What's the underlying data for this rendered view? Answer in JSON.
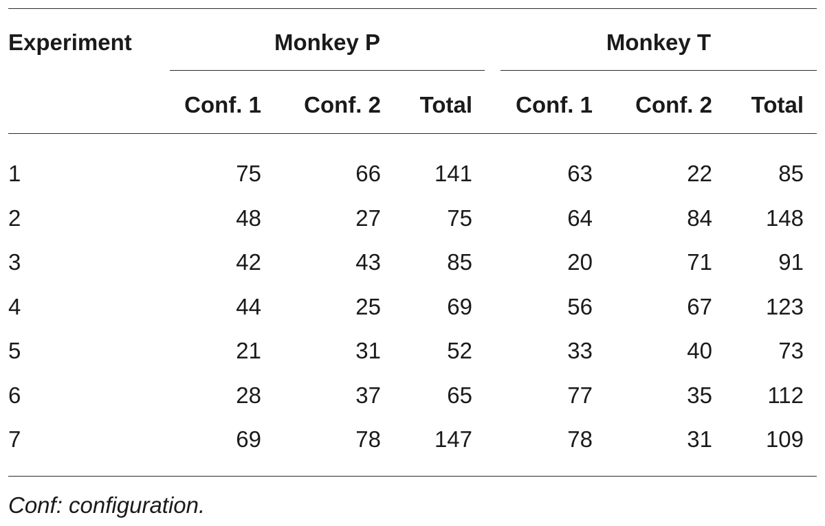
{
  "table": {
    "header": {
      "first_col": "Experiment",
      "groups": [
        {
          "label": "Monkey P",
          "cols": [
            "Conf. 1",
            "Conf. 2",
            "Total"
          ]
        },
        {
          "label": "Monkey T",
          "cols": [
            "Conf. 1",
            "Conf. 2",
            "Total"
          ]
        }
      ]
    },
    "rows": [
      {
        "label": "1",
        "values": [
          "75",
          "66",
          "141",
          "63",
          "22",
          "85"
        ]
      },
      {
        "label": "2",
        "values": [
          "48",
          "27",
          "75",
          "64",
          "84",
          "148"
        ]
      },
      {
        "label": "3",
        "values": [
          "42",
          "43",
          "85",
          "20",
          "71",
          "91"
        ]
      },
      {
        "label": "4",
        "values": [
          "44",
          "25",
          "69",
          "56",
          "67",
          "123"
        ]
      },
      {
        "label": "5",
        "values": [
          "21",
          "31",
          "52",
          "33",
          "40",
          "73"
        ]
      },
      {
        "label": "6",
        "values": [
          "28",
          "37",
          "65",
          "77",
          "35",
          "112"
        ]
      },
      {
        "label": "7",
        "values": [
          "69",
          "78",
          "147",
          "78",
          "31",
          "109"
        ]
      }
    ],
    "footnote": "Conf: configuration."
  }
}
